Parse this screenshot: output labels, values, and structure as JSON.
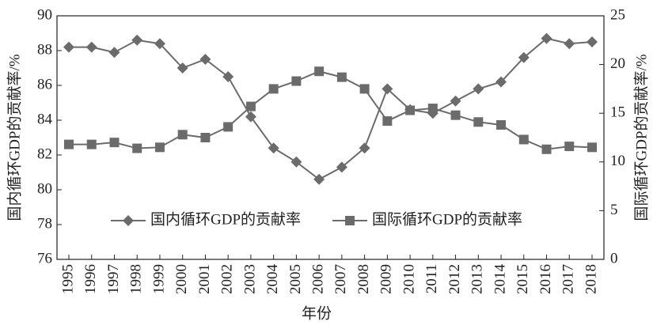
{
  "chart_data": {
    "type": "line",
    "x_label": "年份",
    "y_label": "国内循环GDP的贡献率/%",
    "y2_label": "国际循环GDP的贡献率/%",
    "categories": [
      "1995",
      "1996",
      "1997",
      "1998",
      "1999",
      "2000",
      "2001",
      "2002",
      "2003",
      "2004",
      "2005",
      "2006",
      "2007",
      "2008",
      "2009",
      "2010",
      "2011",
      "2012",
      "2013",
      "2014",
      "2015",
      "2016",
      "2017",
      "2018"
    ],
    "series": [
      {
        "name": "国内循环GDP的贡献率",
        "color": "#6b6b6b",
        "marker": "diamond",
        "values": [
          88.2,
          88.2,
          87.9,
          88.6,
          88.4,
          87.0,
          87.5,
          86.5,
          84.2,
          82.4,
          81.6,
          80.6,
          81.3,
          82.4,
          85.8,
          84.6,
          84.4,
          85.1,
          85.8,
          86.2,
          87.6,
          88.7,
          88.4,
          88.5
        ]
      },
      {
        "name": "国际循环GDP的贡献率",
        "color": "#6b6b6b",
        "marker": "square",
        "axis": "y2",
        "values": [
          11.8,
          11.8,
          12.0,
          11.4,
          11.5,
          12.8,
          12.5,
          13.6,
          15.7,
          17.5,
          18.3,
          19.3,
          18.7,
          17.5,
          14.2,
          15.3,
          15.5,
          14.8,
          14.1,
          13.8,
          12.3,
          11.3,
          11.6,
          11.5
        ]
      }
    ],
    "ylim": [
      76,
      90
    ],
    "yticks": [
      76,
      78,
      80,
      82,
      84,
      86,
      88,
      90
    ],
    "y2lim": [
      0,
      25
    ],
    "y2ticks": [
      0,
      5,
      10,
      15,
      20,
      25
    ],
    "legend": "center"
  }
}
